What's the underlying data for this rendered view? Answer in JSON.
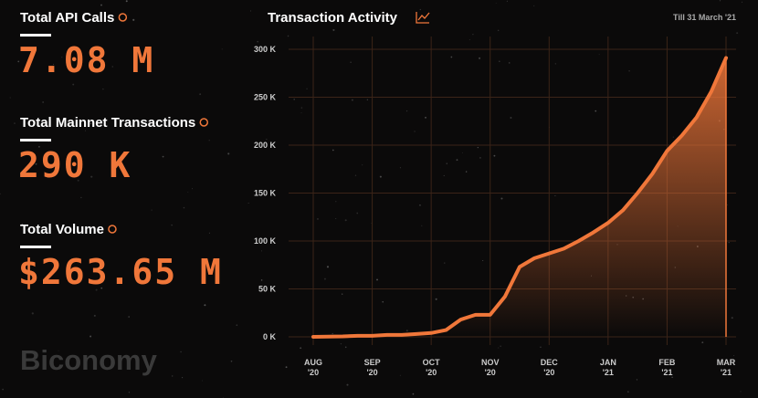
{
  "stats": [
    {
      "label": "Total API Calls",
      "value": "7.08 M"
    },
    {
      "label": "Total Mainnet Transactions",
      "value": "290 K"
    },
    {
      "label": "Total Volume",
      "value": "$263.65 M"
    }
  ],
  "brand": "Biconomy",
  "chart_data": {
    "type": "area",
    "title": "Transaction Activity",
    "subtitle": "Till 31 March '21",
    "categories": [
      "AUG '20",
      null,
      null,
      null,
      "SEP '20",
      null,
      null,
      null,
      "OCT '20",
      null,
      null,
      null,
      "NOV '20",
      null,
      null,
      null,
      "DEC '20",
      null,
      null,
      null,
      "JAN '21",
      null,
      null,
      null,
      "FEB '21",
      null,
      null,
      null,
      "MAR '21"
    ],
    "values": [
      0,
      300,
      500,
      1000,
      1000,
      2000,
      2000,
      3000,
      4000,
      7000,
      18000,
      23000,
      23000,
      42000,
      73000,
      82000,
      87000,
      92000,
      100000,
      109000,
      119000,
      132000,
      150000,
      170000,
      194000,
      210000,
      229000,
      256000,
      291000
    ],
    "color": "#f0773a",
    "ylim": [
      0,
      300000
    ],
    "yticks": [
      {
        "value": 0,
        "label": "0 K"
      },
      {
        "value": 50000,
        "label": "50 K"
      },
      {
        "value": 100000,
        "label": "100 K"
      },
      {
        "value": 150000,
        "label": "150 K"
      },
      {
        "value": 200000,
        "label": "200 K"
      },
      {
        "value": 250000,
        "label": "250 K"
      },
      {
        "value": 300000,
        "label": "300 K"
      }
    ],
    "grid": true
  }
}
